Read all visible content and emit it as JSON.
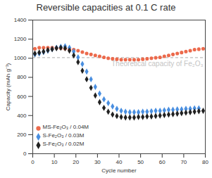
{
  "chart_data": {
    "type": "scatter",
    "title": "Reversible capacities at 0.1 C rate",
    "x_label": "Cycle number",
    "y_label": "Capacity (mAh g⁻¹)",
    "xlim": [
      0,
      80
    ],
    "xticks": [
      0,
      10,
      20,
      30,
      40,
      50,
      60,
      70,
      80
    ],
    "ylim": [
      0,
      1400
    ],
    "yticks": [
      0,
      200,
      400,
      600,
      800,
      1000,
      1200,
      1400
    ],
    "grid": false,
    "legend": "bottom-left",
    "reference_line": {
      "value": 1007,
      "label": "Theoretical capacity of Fe₂O₃",
      "line_style": "dashed",
      "color": "#bbbbbb"
    },
    "series": [
      {
        "name": "MS-Fe₂O₃ / 0.04M",
        "color": "#ec6a4c",
        "marker": "circle",
        "x": [
          1,
          3,
          5,
          7,
          9,
          11,
          13,
          15,
          17,
          19,
          21,
          23,
          25,
          27,
          29,
          31,
          33,
          35,
          37,
          39,
          41,
          43,
          45,
          47,
          49,
          51,
          53,
          55,
          57,
          59,
          61,
          63,
          65,
          67,
          69,
          71,
          73,
          75,
          77,
          79
        ],
        "values": [
          1100,
          1110,
          1110,
          1110,
          1110,
          1108,
          1105,
          1100,
          1095,
          1090,
          1080,
          1065,
          1050,
          1040,
          1030,
          1020,
          1010,
          1000,
          995,
          990,
          985,
          985,
          985,
          985,
          985,
          990,
          995,
          1000,
          1005,
          1010,
          1020,
          1030,
          1040,
          1050,
          1060,
          1070,
          1080,
          1090,
          1095,
          1100
        ]
      },
      {
        "name": "S-Fe₂O₃ / 0.03M",
        "color": "#4a8fe0",
        "marker": "diamond",
        "x": [
          1,
          3,
          5,
          7,
          9,
          11,
          13,
          15,
          17,
          19,
          21,
          23,
          25,
          27,
          29,
          31,
          33,
          35,
          37,
          39,
          41,
          43,
          45,
          47,
          49,
          51,
          53,
          55,
          57,
          59,
          61,
          63,
          65,
          67,
          69,
          71,
          73,
          75,
          77
        ],
        "values": [
          1040,
          1050,
          1065,
          1080,
          1095,
          1110,
          1120,
          1125,
          1110,
          1070,
          1010,
          940,
          860,
          780,
          700,
          630,
          570,
          530,
          495,
          470,
          450,
          440,
          435,
          435,
          435,
          440,
          440,
          445,
          450,
          450,
          455,
          460,
          460,
          465,
          465,
          470,
          470,
          475,
          475
        ]
      },
      {
        "name": "S-Fe₂O₃ / 0.02M",
        "color": "#222222",
        "marker": "diamond",
        "x": [
          1,
          3,
          5,
          7,
          9,
          11,
          13,
          15,
          17,
          19,
          21,
          23,
          25,
          27,
          29,
          31,
          33,
          35,
          37,
          39,
          41,
          43,
          45,
          47,
          49,
          51,
          53,
          55,
          57,
          59,
          61,
          63,
          65,
          67,
          69,
          71,
          73,
          75,
          77,
          79
        ],
        "values": [
          1050,
          1060,
          1070,
          1085,
          1095,
          1105,
          1110,
          1105,
          1080,
          1030,
          960,
          870,
          780,
          690,
          610,
          540,
          480,
          440,
          410,
          395,
          385,
          380,
          380,
          380,
          385,
          385,
          390,
          390,
          395,
          400,
          405,
          410,
          415,
          420,
          425,
          430,
          435,
          440,
          445,
          450
        ]
      }
    ]
  }
}
